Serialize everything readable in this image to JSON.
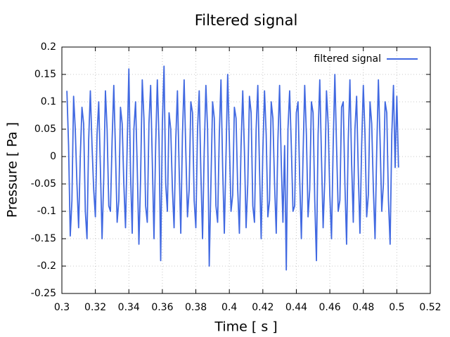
{
  "chart_data": {
    "type": "line",
    "title": "Filtered signal",
    "xlabel": "Time [ s ]",
    "ylabel": "Pressure [ Pa ]",
    "xlim": [
      0.3,
      0.52
    ],
    "xticks": [
      0.3,
      0.32,
      0.34,
      0.36,
      0.38,
      0.4,
      0.42,
      0.44,
      0.46,
      0.48,
      0.5,
      0.52
    ],
    "ylim": [
      -0.25,
      0.2
    ],
    "yticks": [
      -0.25,
      -0.2,
      -0.15,
      -0.1,
      -0.05,
      0,
      0.05,
      0.1,
      0.15,
      0.2
    ],
    "grid": true,
    "legend": "top-right",
    "x": [
      0.303,
      0.304,
      0.305,
      0.306,
      0.307,
      0.308,
      0.309,
      0.31,
      0.311,
      0.312,
      0.313,
      0.314,
      0.315,
      0.316,
      0.317,
      0.318,
      0.319,
      0.32,
      0.321,
      0.322,
      0.323,
      0.324,
      0.325,
      0.326,
      0.327,
      0.328,
      0.329,
      0.33,
      0.331,
      0.332,
      0.333,
      0.334,
      0.335,
      0.336,
      0.337,
      0.338,
      0.339,
      0.34,
      0.341,
      0.342,
      0.343,
      0.344,
      0.345,
      0.346,
      0.347,
      0.348,
      0.349,
      0.35,
      0.351,
      0.352,
      0.353,
      0.354,
      0.355,
      0.356,
      0.357,
      0.358,
      0.359,
      0.36,
      0.361,
      0.362,
      0.363,
      0.364,
      0.365,
      0.366,
      0.367,
      0.368,
      0.369,
      0.37,
      0.371,
      0.372,
      0.373,
      0.374,
      0.375,
      0.376,
      0.377,
      0.378,
      0.379,
      0.38,
      0.381,
      0.382,
      0.383,
      0.384,
      0.385,
      0.386,
      0.387,
      0.388,
      0.389,
      0.39,
      0.391,
      0.392,
      0.393,
      0.394,
      0.395,
      0.396,
      0.397,
      0.398,
      0.399,
      0.4,
      0.401,
      0.402,
      0.403,
      0.404,
      0.405,
      0.406,
      0.407,
      0.408,
      0.409,
      0.41,
      0.411,
      0.412,
      0.413,
      0.414,
      0.415,
      0.416,
      0.417,
      0.418,
      0.419,
      0.42,
      0.421,
      0.422,
      0.423,
      0.424,
      0.425,
      0.426,
      0.427,
      0.428,
      0.429,
      0.43,
      0.431,
      0.432,
      0.433,
      0.434,
      0.435,
      0.436,
      0.437,
      0.438,
      0.439,
      0.44,
      0.441,
      0.442,
      0.443,
      0.444,
      0.445,
      0.446,
      0.447,
      0.448,
      0.449,
      0.45,
      0.451,
      0.452,
      0.453,
      0.454,
      0.455,
      0.456,
      0.457,
      0.458,
      0.459,
      0.46,
      0.461,
      0.462,
      0.463,
      0.464,
      0.465,
      0.466,
      0.467,
      0.468,
      0.469,
      0.47,
      0.471,
      0.472,
      0.473,
      0.474,
      0.475,
      0.476,
      0.477,
      0.478,
      0.479,
      0.48,
      0.481,
      0.482,
      0.483,
      0.484,
      0.485,
      0.486,
      0.487,
      0.488,
      0.489,
      0.49,
      0.491,
      0.492,
      0.493,
      0.494,
      0.495,
      0.496,
      0.497,
      0.498,
      0.499,
      0.5,
      0.501
    ],
    "series": [
      {
        "name": "filtered signal",
        "color": "#4169e1",
        "values": [
          0.12,
          0.02,
          -0.145,
          -0.08,
          0.11,
          0.05,
          -0.05,
          -0.13,
          0.0,
          0.09,
          0.06,
          -0.1,
          -0.15,
          0.03,
          0.12,
          0.02,
          -0.06,
          -0.11,
          0.04,
          0.1,
          -0.02,
          -0.15,
          -0.04,
          0.12,
          0.05,
          -0.09,
          -0.1,
          0.03,
          0.13,
          0.01,
          -0.12,
          -0.08,
          0.09,
          0.06,
          -0.05,
          -0.13,
          0.02,
          0.16,
          -0.03,
          -0.14,
          0.05,
          0.1,
          -0.02,
          -0.16,
          -0.04,
          0.14,
          0.07,
          -0.09,
          -0.12,
          0.06,
          0.13,
          -0.01,
          -0.15,
          0.02,
          0.14,
          0.03,
          -0.19,
          0.06,
          0.165,
          -0.05,
          -0.1,
          0.08,
          0.05,
          -0.06,
          -0.13,
          0.03,
          0.12,
          -0.02,
          -0.14,
          0.04,
          0.14,
          0.01,
          -0.11,
          -0.06,
          0.1,
          0.08,
          -0.08,
          -0.13,
          0.05,
          0.12,
          -0.03,
          -0.15,
          0.01,
          0.13,
          0.05,
          -0.2,
          -0.05,
          0.1,
          0.07,
          -0.09,
          -0.12,
          0.04,
          0.14,
          -0.02,
          -0.14,
          0.0,
          0.15,
          0.03,
          -0.1,
          -0.07,
          0.09,
          0.07,
          -0.06,
          -0.14,
          0.02,
          0.12,
          0.01,
          -0.13,
          -0.05,
          0.11,
          0.08,
          -0.09,
          -0.12,
          0.05,
          0.13,
          -0.02,
          -0.15,
          0.01,
          0.12,
          0.04,
          -0.11,
          -0.08,
          0.1,
          0.07,
          -0.05,
          -0.14,
          0.03,
          0.13,
          -0.01,
          -0.12,
          0.02,
          -0.207,
          0.05,
          0.12,
          0.02,
          -0.1,
          -0.09,
          0.08,
          0.1,
          -0.04,
          -0.15,
          0.0,
          0.13,
          0.04,
          -0.11,
          -0.06,
          0.1,
          0.08,
          -0.08,
          -0.19,
          0.04,
          0.14,
          0.0,
          -0.13,
          -0.04,
          0.12,
          0.06,
          -0.07,
          -0.15,
          0.02,
          0.15,
          0.02,
          -0.1,
          -0.08,
          0.09,
          0.1,
          -0.05,
          -0.16,
          0.03,
          0.14,
          -0.01,
          -0.12,
          0.05,
          0.11,
          -0.03,
          -0.14,
          0.02,
          0.13,
          0.04,
          -0.11,
          -0.07,
          0.1,
          0.06,
          -0.06,
          -0.15,
          0.01,
          0.14,
          0.03,
          -0.1,
          -0.05,
          0.1,
          0.08,
          -0.08,
          -0.16,
          0.04,
          0.13,
          -0.02,
          0.11,
          -0.02
        ]
      }
    ]
  }
}
